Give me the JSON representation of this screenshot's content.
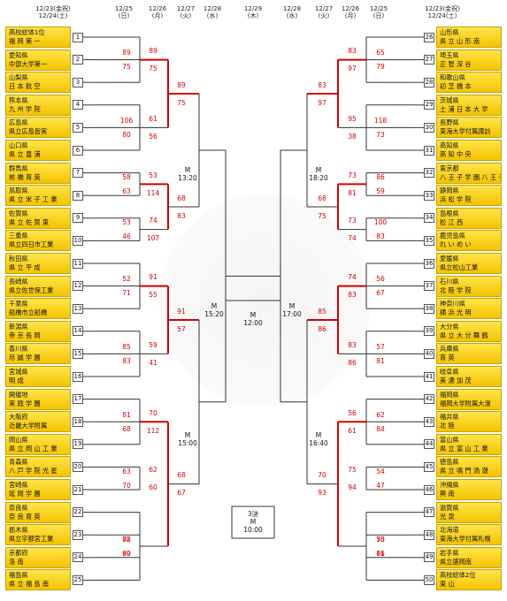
{
  "chart_data": {
    "type": "table",
    "dates": [
      {
        "l1": "12/23(金祝)",
        "l2": "12/24(土)"
      },
      {
        "l1": "12/25",
        "l2": "(日)"
      },
      {
        "l1": "12/26",
        "l2": "(月)"
      },
      {
        "l1": "12/27",
        "l2": "(火)"
      },
      {
        "l1": "12/28",
        "l2": "(水)"
      },
      {
        "l1": "12/29",
        "l2": "(木)"
      },
      {
        "l1": "12/28",
        "l2": "(水)"
      },
      {
        "l1": "12/27",
        "l2": "(火)"
      },
      {
        "l1": "12/26",
        "l2": "(月)"
      },
      {
        "l1": "12/25",
        "l2": "(日)"
      },
      {
        "l1": "12/23(金祝)",
        "l2": "12/24(土)"
      }
    ],
    "left_teams": [
      {
        "n": 1,
        "pref": "高校総体1位",
        "name": "福 岡 第 一"
      },
      {
        "n": 2,
        "pref": "愛知県",
        "name": "中部大学第一"
      },
      {
        "n": 3,
        "pref": "山梨県",
        "name": "日 本 航 空"
      },
      {
        "n": 4,
        "pref": "熊本県",
        "name": "九 州 学 院"
      },
      {
        "n": 5,
        "pref": "広島県",
        "name": "県立広島皆実"
      },
      {
        "n": 6,
        "pref": "山口県",
        "name": "県 立 豊 浦"
      },
      {
        "n": 7,
        "pref": "群馬県",
        "name": "前 橋 育 英"
      },
      {
        "n": 8,
        "pref": "鳥取県",
        "name": "県 立 米 子 工 業"
      },
      {
        "n": 9,
        "pref": "佐賀県",
        "name": "県 立 佐 賀 東"
      },
      {
        "n": 10,
        "pref": "三重県",
        "name": "県立四日市工業"
      },
      {
        "n": 11,
        "pref": "秋田県",
        "name": "県 立 平 成"
      },
      {
        "n": 12,
        "pref": "長崎県",
        "name": "県立佐世保工業"
      },
      {
        "n": 13,
        "pref": "千葉県",
        "name": "船橋市立船橋"
      },
      {
        "n": 14,
        "pref": "新潟県",
        "name": "帝 京 長 岡"
      },
      {
        "n": 15,
        "pref": "香川県",
        "name": "尽 誠 学 園"
      },
      {
        "n": 16,
        "pref": "宮城県",
        "name": "明 成"
      },
      {
        "n": 17,
        "pref": "開催地",
        "name": "実 践 学 園"
      },
      {
        "n": 18,
        "pref": "大阪府",
        "name": "近畿大学附属"
      },
      {
        "n": 19,
        "pref": "岡山県",
        "name": "県 立 岡 山 工 業"
      },
      {
        "n": 20,
        "pref": "青森県",
        "name": "八 戸 学 院 光 星"
      },
      {
        "n": 21,
        "pref": "宮崎県",
        "name": "延 岡 学 園"
      },
      {
        "n": 22,
        "pref": "奈良県",
        "name": "奈 良 育 英"
      },
      {
        "n": 23,
        "pref": "栃木県",
        "name": "県立宇都宮工業"
      },
      {
        "n": 24,
        "pref": "京都府",
        "name": "洛 南"
      },
      {
        "n": 25,
        "pref": "福島県",
        "name": "県 立 福 島 南"
      }
    ],
    "right_teams": [
      {
        "n": 26,
        "pref": "山形県",
        "name": "県 立 山 形 南"
      },
      {
        "n": 27,
        "pref": "埼玉県",
        "name": "正 智 深 谷"
      },
      {
        "n": 28,
        "pref": "和歌山県",
        "name": "初 芝 橋 本"
      },
      {
        "n": 29,
        "pref": "茨城県",
        "name": "土 浦 日 本 大 学"
      },
      {
        "n": 30,
        "pref": "長野県",
        "name": "東海大学付属諏訪"
      },
      {
        "n": 31,
        "pref": "高知県",
        "name": "高 知 中 央"
      },
      {
        "n": 32,
        "pref": "東京都",
        "name": "八 王 子 学 園 八 王 子"
      },
      {
        "n": 33,
        "pref": "静岡県",
        "name": "浜 松 学 院"
      },
      {
        "n": 34,
        "pref": "島根県",
        "name": "松 江 西"
      },
      {
        "n": 35,
        "pref": "鹿児島県",
        "name": "れ い め い"
      },
      {
        "n": 36,
        "pref": "愛媛県",
        "name": "県立松山工業"
      },
      {
        "n": 37,
        "pref": "石川県",
        "name": "北 陸 学 院"
      },
      {
        "n": 38,
        "pref": "神奈川県",
        "name": "横 浜 光 明"
      },
      {
        "n": 39,
        "pref": "大分県",
        "name": "県 立 大 分 舞 鶴"
      },
      {
        "n": 40,
        "pref": "兵庫県",
        "name": "育 英"
      },
      {
        "n": 41,
        "pref": "岐阜県",
        "name": "美 濃 加 茂"
      },
      {
        "n": 42,
        "pref": "福岡県",
        "name": "福岡大学附属大濠"
      },
      {
        "n": 43,
        "pref": "福井県",
        "name": "北 陸"
      },
      {
        "n": 44,
        "pref": "富山県",
        "name": "県 立 富 山 工 業"
      },
      {
        "n": 45,
        "pref": "徳島県",
        "name": "県 立 鳴 門 渦 潮"
      },
      {
        "n": 46,
        "pref": "沖縄県",
        "name": "興 南"
      },
      {
        "n": 47,
        "pref": "滋賀県",
        "name": "光 泉"
      },
      {
        "n": 48,
        "pref": "北海道",
        "name": "東海大学付属札幌"
      },
      {
        "n": 49,
        "pref": "岩手県",
        "name": "県立盛岡南"
      },
      {
        "n": 50,
        "pref": "高校総体2位",
        "name": "東 山"
      }
    ],
    "scores": [
      {
        "side": "L",
        "round": 1,
        "slot": 0,
        "top": "89",
        "bottom": "75"
      },
      {
        "side": "L",
        "round": 1,
        "slot": 1,
        "top": "106",
        "bottom": "80"
      },
      {
        "side": "L",
        "round": 1,
        "slot": 2,
        "top": "58",
        "bottom": "63"
      },
      {
        "side": "L",
        "round": 1,
        "slot": 3,
        "top": "53",
        "bottom": "46"
      },
      {
        "side": "L",
        "round": 1,
        "slot": 4,
        "top": "52",
        "bottom": "71"
      },
      {
        "side": "L",
        "round": 1,
        "slot": 5,
        "top": "85",
        "bottom": "83"
      },
      {
        "side": "L",
        "round": 1,
        "slot": 6,
        "top": "81",
        "bottom": "68"
      },
      {
        "side": "L",
        "round": 1,
        "slot": 7,
        "top": "63",
        "bottom": "70"
      },
      {
        "side": "L",
        "round": 1,
        "slot": 8,
        "top": "88",
        "bottom": "60"
      },
      {
        "side": "L",
        "round": 1,
        "slot": 9,
        "top": "72",
        "bottom": "99"
      },
      {
        "side": "L",
        "round": 2,
        "slot": 0,
        "top": "89",
        "bottom": "75"
      },
      {
        "side": "L",
        "round": 2,
        "slot": 1,
        "top": "61",
        "bottom": "56"
      },
      {
        "side": "L",
        "round": 2,
        "slot": 2,
        "top": "53",
        "bottom": "114"
      },
      {
        "side": "L",
        "round": 2,
        "slot": 3,
        "top": "74",
        "bottom": "107"
      },
      {
        "side": "L",
        "round": 2,
        "slot": 4,
        "top": "91",
        "bottom": "55"
      },
      {
        "side": "L",
        "round": 2,
        "slot": 5,
        "top": "59",
        "bottom": "41"
      },
      {
        "side": "L",
        "round": 2,
        "slot": 6,
        "top": "70",
        "bottom": "112"
      },
      {
        "side": "L",
        "round": 2,
        "slot": 7,
        "top": "62",
        "bottom": "60"
      },
      {
        "side": "L",
        "round": 3,
        "slot": 0,
        "top": "89",
        "bottom": "75"
      },
      {
        "side": "L",
        "round": 3,
        "slot": 1,
        "top": "68",
        "bottom": "83"
      },
      {
        "side": "L",
        "round": 3,
        "slot": 2,
        "top": "91",
        "bottom": "57"
      },
      {
        "side": "L",
        "round": 3,
        "slot": 3,
        "top": "68",
        "bottom": "67"
      },
      {
        "side": "R",
        "round": 1,
        "slot": 0,
        "top": "65",
        "bottom": "79"
      },
      {
        "side": "R",
        "round": 1,
        "slot": 1,
        "top": "118",
        "bottom": "73"
      },
      {
        "side": "R",
        "round": 1,
        "slot": 2,
        "top": "86",
        "bottom": "59"
      },
      {
        "side": "R",
        "round": 1,
        "slot": 3,
        "top": "100",
        "bottom": "83"
      },
      {
        "side": "R",
        "round": 1,
        "slot": 4,
        "top": "56",
        "bottom": "67"
      },
      {
        "side": "R",
        "round": 1,
        "slot": 5,
        "top": "57",
        "bottom": "81"
      },
      {
        "side": "R",
        "round": 1,
        "slot": 6,
        "top": "62",
        "bottom": "84"
      },
      {
        "side": "R",
        "round": 1,
        "slot": 7,
        "top": "54",
        "bottom": "47"
      },
      {
        "side": "R",
        "round": 1,
        "slot": 8,
        "top": "70",
        "bottom": "66"
      },
      {
        "side": "R",
        "round": 1,
        "slot": 9,
        "top": "55",
        "bottom": "71"
      },
      {
        "side": "R",
        "round": 2,
        "slot": 0,
        "top": "83",
        "bottom": "97"
      },
      {
        "side": "R",
        "round": 2,
        "slot": 1,
        "top": "95",
        "bottom": "38"
      },
      {
        "side": "R",
        "round": 2,
        "slot": 2,
        "top": "73",
        "bottom": "81"
      },
      {
        "side": "R",
        "round": 2,
        "slot": 3,
        "top": "73",
        "bottom": "74"
      },
      {
        "side": "R",
        "round": 2,
        "slot": 4,
        "top": "74",
        "bottom": "83"
      },
      {
        "side": "R",
        "round": 2,
        "slot": 5,
        "top": "83",
        "bottom": "86"
      },
      {
        "side": "R",
        "round": 2,
        "slot": 6,
        "top": "56",
        "bottom": "61"
      },
      {
        "side": "R",
        "round": 2,
        "slot": 7,
        "top": "75",
        "bottom": "94"
      },
      {
        "side": "R",
        "round": 3,
        "slot": 0,
        "top": "83",
        "bottom": "97"
      },
      {
        "side": "R",
        "round": 3,
        "slot": 1,
        "top": "68",
        "bottom": "75"
      },
      {
        "side": "R",
        "round": 3,
        "slot": 2,
        "top": "85",
        "bottom": "86"
      },
      {
        "side": "R",
        "round": 3,
        "slot": 3,
        "top": "70",
        "bottom": "93"
      }
    ],
    "venues": [
      {
        "pos": "L-qf-top",
        "text": "M\n13:20"
      },
      {
        "pos": "L-qf-bottom",
        "text": "M\n15:00"
      },
      {
        "pos": "L-sf",
        "text": "M\n15:20"
      },
      {
        "pos": "final",
        "text": "M\n12:00"
      },
      {
        "pos": "R-sf",
        "text": "M\n17:00"
      },
      {
        "pos": "R-qf-top",
        "text": "M\n18:20"
      },
      {
        "pos": "R-qf-bottom",
        "text": "M\n16:40"
      },
      {
        "pos": "third",
        "text": "3決\nM\n10:00"
      }
    ],
    "highlight_color": "#d40000",
    "line_color": "#333333"
  }
}
